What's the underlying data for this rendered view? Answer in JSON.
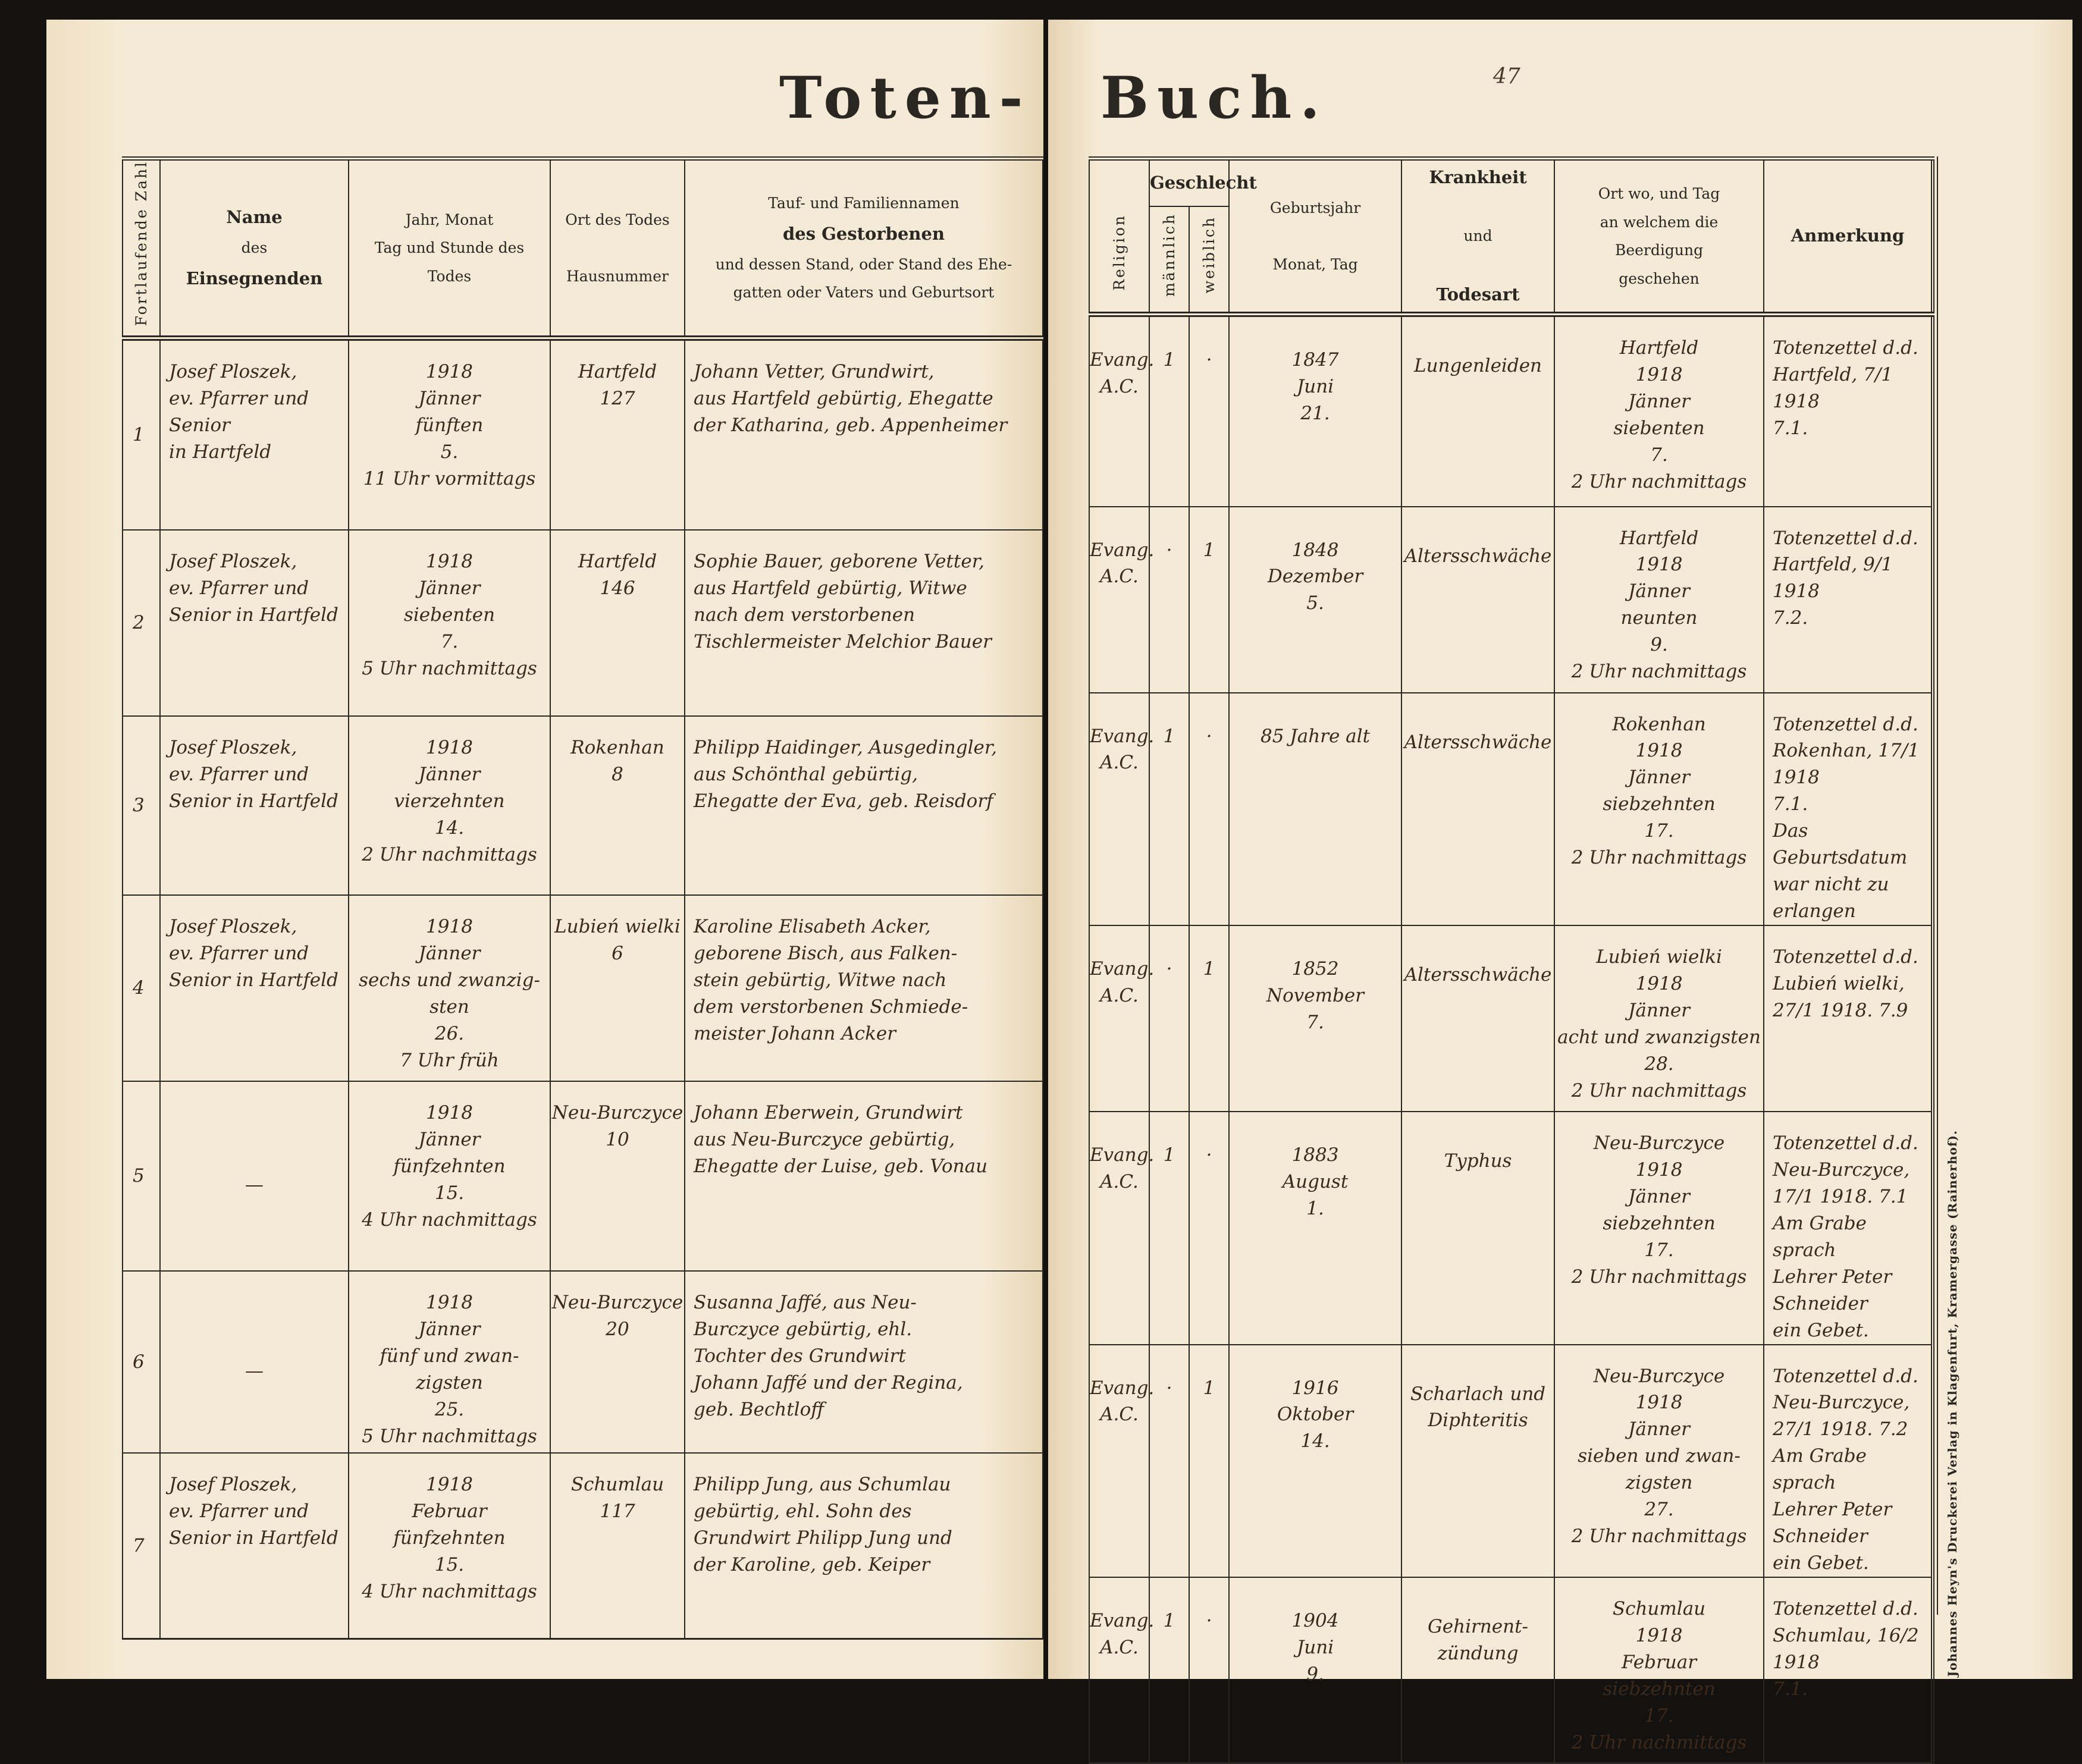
{
  "title": {
    "left": "Toten-",
    "right": "Buch."
  },
  "page_number": "47",
  "left_headers": {
    "number": "Fortlaufende Zahl",
    "name": [
      "Name",
      "des",
      "Einsegnenden"
    ],
    "date": [
      "Jahr, Monat",
      "Tag und Stunde des",
      "Todes"
    ],
    "place": [
      "Ort des Todes",
      "Hausnummer"
    ],
    "deceased": [
      "Tauf- und Familiennamen",
      "des Gestorbenen",
      "und dessen Stand, oder Stand des Ehe-",
      "gatten oder Vaters und Geburtsort"
    ]
  },
  "right_headers": {
    "religion": "Religion",
    "sex": "Geschlecht",
    "male": "männlich",
    "female": "weiblich",
    "birth": [
      "Geburtsjahr",
      "Monat, Tag"
    ],
    "cause": [
      "Krankheit",
      "und",
      "Todesart"
    ],
    "burial": [
      "Ort wo, und Tag",
      "an welchem die Beerdigung",
      "geschehen"
    ],
    "remarks": "Anmerkung"
  },
  "entries": [
    {
      "nr": "1",
      "name": [
        "Josef Ploszek,",
        "ev. Pfarrer und Senior",
        "in Hartfeld"
      ],
      "date": [
        "1918",
        "Jänner",
        "fünften",
        "5.",
        "11 Uhr vormittags"
      ],
      "place": [
        "Hartfeld",
        "127"
      ],
      "deceased": [
        "Johann Vetter, Grundwirt,",
        "aus Hartfeld gebürtig, Ehegatte",
        "der Katharina, geb. Appenheimer"
      ],
      "religion": [
        "Evang.",
        "A.C."
      ],
      "male": "1",
      "female": "·",
      "birth": [
        "1847",
        "Juni",
        "21."
      ],
      "cause": [
        "Lungenleiden"
      ],
      "burial": [
        "Hartfeld",
        "1918",
        "Jänner",
        "siebenten",
        "7.",
        "2 Uhr nachmittags"
      ],
      "remarks": [
        "Totenzettel d.d.",
        "Hartfeld, 7/1 1918",
        "7.1."
      ]
    },
    {
      "nr": "2",
      "name": [
        "Josef Ploszek,",
        "ev. Pfarrer und",
        "Senior in Hartfeld"
      ],
      "date": [
        "1918",
        "Jänner",
        "siebenten",
        "7.",
        "5 Uhr nachmittags"
      ],
      "place": [
        "Hartfeld",
        "146"
      ],
      "deceased": [
        "Sophie Bauer, geborene Vetter,",
        "aus Hartfeld gebürtig, Witwe",
        "nach dem verstorbenen",
        "Tischlermeister Melchior Bauer"
      ],
      "religion": [
        "Evang.",
        "A.C."
      ],
      "male": "·",
      "female": "1",
      "birth": [
        "1848",
        "Dezember",
        "5."
      ],
      "cause": [
        "Altersschwäche"
      ],
      "burial": [
        "Hartfeld",
        "1918",
        "Jänner",
        "neunten",
        "9.",
        "2 Uhr nachmittags"
      ],
      "remarks": [
        "Totenzettel d.d.",
        "Hartfeld, 9/1 1918",
        "7.2."
      ]
    },
    {
      "nr": "3",
      "name": [
        "Josef Ploszek,",
        "ev. Pfarrer und",
        "Senior in Hartfeld"
      ],
      "date": [
        "1918",
        "Jänner",
        "vierzehnten",
        "14.",
        "2 Uhr nachmittags"
      ],
      "place": [
        "Rokenhan",
        "8"
      ],
      "deceased": [
        "Philipp Haidinger, Ausgedingler,",
        "aus Schönthal gebürtig,",
        "Ehegatte der Eva, geb. Reisdorf"
      ],
      "religion": [
        "Evang.",
        "A.C."
      ],
      "male": "1",
      "female": "·",
      "birth": [
        "85 Jahre alt"
      ],
      "cause": [
        "Altersschwäche"
      ],
      "burial": [
        "Rokenhan",
        "1918",
        "Jänner",
        "siebzehnten",
        "17.",
        "2 Uhr nachmittags"
      ],
      "remarks": [
        "Totenzettel d.d.",
        "Rokenhan, 17/1 1918",
        "7.1.",
        "Das Geburtsdatum",
        "war nicht zu erlangen"
      ]
    },
    {
      "nr": "4",
      "name": [
        "Josef Ploszek,",
        "ev. Pfarrer und",
        "Senior in Hartfeld"
      ],
      "date": [
        "1918",
        "Jänner",
        "sechs und zwanzig-",
        "sten",
        "26.",
        "7 Uhr früh"
      ],
      "place": [
        "Lubień wielki",
        "6"
      ],
      "deceased": [
        "Karoline Elisabeth Acker,",
        "geborene Bisch, aus Falken-",
        "stein gebürtig, Witwe nach",
        "dem verstorbenen Schmiede-",
        "meister Johann Acker"
      ],
      "religion": [
        "Evang.",
        "A.C."
      ],
      "male": "·",
      "female": "1",
      "birth": [
        "1852",
        "November",
        "7."
      ],
      "cause": [
        "Altersschwäche"
      ],
      "burial": [
        "Lubień wielki",
        "1918",
        "Jänner",
        "acht und zwanzigsten",
        "28.",
        "2 Uhr nachmittags"
      ],
      "remarks": [
        "Totenzettel d.d.",
        "Lubień wielki,",
        "27/1 1918. 7.9"
      ]
    },
    {
      "nr": "5",
      "name": [
        "—"
      ],
      "date": [
        "1918",
        "Jänner",
        "fünfzehnten",
        "15.",
        "4 Uhr nachmittags"
      ],
      "place": [
        "Neu-Burczyce",
        "10"
      ],
      "deceased": [
        "Johann Eberwein, Grundwirt",
        "aus Neu-Burczyce gebürtig,",
        "Ehegatte der Luise, geb. Vonau"
      ],
      "religion": [
        "Evang.",
        "A.C."
      ],
      "male": "1",
      "female": "·",
      "birth": [
        "1883",
        "August",
        "1."
      ],
      "cause": [
        "Typhus"
      ],
      "burial": [
        "Neu-Burczyce",
        "1918",
        "Jänner",
        "siebzehnten",
        "17.",
        "2 Uhr nachmittags"
      ],
      "remarks": [
        "Totenzettel d.d.",
        "Neu-Burczyce,",
        "17/1 1918. 7.1",
        "Am Grabe sprach",
        "Lehrer Peter Schneider",
        "ein Gebet."
      ]
    },
    {
      "nr": "6",
      "name": [
        "—"
      ],
      "date": [
        "1918",
        "Jänner",
        "fünf und zwan-",
        "zigsten",
        "25.",
        "5 Uhr nachmittags"
      ],
      "place": [
        "Neu-Burczyce",
        "20"
      ],
      "deceased": [
        "Susanna Jaffé, aus Neu-",
        "Burczyce gebürtig, ehl.",
        "Tochter des Grundwirt",
        "Johann Jaffé und der Regina,",
        "geb. Bechtloff"
      ],
      "religion": [
        "Evang.",
        "A.C."
      ],
      "male": "·",
      "female": "1",
      "birth": [
        "1916",
        "Oktober",
        "14."
      ],
      "cause": [
        "Scharlach und",
        "Diphteritis"
      ],
      "burial": [
        "Neu-Burczyce",
        "1918",
        "Jänner",
        "sieben und zwan-",
        "zigsten",
        "27.",
        "2 Uhr nachmittags"
      ],
      "remarks": [
        "Totenzettel d.d.",
        "Neu-Burczyce,",
        "27/1 1918. 7.2",
        "Am Grabe sprach",
        "Lehrer Peter Schneider",
        "ein Gebet."
      ]
    },
    {
      "nr": "7",
      "name": [
        "Josef Ploszek,",
        "ev. Pfarrer und",
        "Senior in Hartfeld"
      ],
      "date": [
        "1918",
        "Februar",
        "fünfzehnten",
        "15.",
        "4 Uhr nachmittags"
      ],
      "place": [
        "Schumlau",
        "117"
      ],
      "deceased": [
        "Philipp Jung, aus Schumlau",
        "gebürtig, ehl. Sohn des",
        "Grundwirt Philipp Jung und",
        "der Karoline, geb. Keiper"
      ],
      "religion": [
        "Evang.",
        "A.C."
      ],
      "male": "1",
      "female": "·",
      "birth": [
        "1904",
        "Juni",
        "9."
      ],
      "cause": [
        "Gehirnent-",
        "zündung"
      ],
      "burial": [
        "Schumlau",
        "1918",
        "Februar",
        "siebzehnten",
        "17.",
        "2 Uhr nachmittags"
      ],
      "remarks": [
        "Totenzettel d.d.",
        "Schumlau, 16/2 1918",
        "7.1."
      ]
    }
  ],
  "publisher": "Johannes Heyn's Druckerei Verlag in Klagenfurt, Kramergasse (Rainerhof).",
  "colors": {
    "paper": "#f4e8d2",
    "ink_print": "#2a2622",
    "ink_handwriting": "#3b2a1c",
    "background": "#141210"
  }
}
